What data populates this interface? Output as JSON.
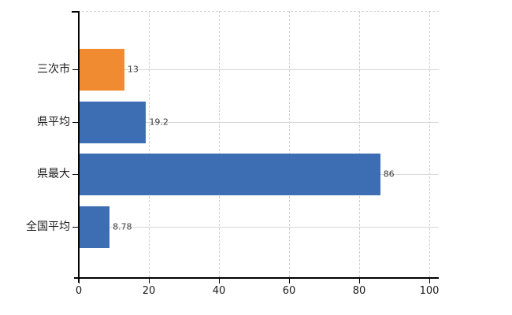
{
  "chart_data": {
    "type": "bar",
    "orientation": "horizontal",
    "categories": [
      "三次市",
      "県平均",
      "県最大",
      "全国平均"
    ],
    "values": [
      13,
      19.2,
      86,
      8.78
    ],
    "value_labels": [
      "13",
      "19.2",
      "86",
      "8.78"
    ],
    "x_ticks": [
      0,
      20,
      40,
      60,
      80,
      100
    ],
    "x_tick_labels": [
      "0",
      "20",
      "40",
      "60",
      "80",
      "100"
    ],
    "xlim": [
      0,
      100
    ],
    "bar_colors": [
      "#f08b31",
      "#3d6db3",
      "#3d6db3",
      "#3d6db3"
    ],
    "highlight_index": 0,
    "grid": true,
    "legend": false
  },
  "colors": {
    "bar_orange": "#f08b31",
    "bar_blue": "#3d6db3",
    "grid_vertical": "#cfcfcf",
    "grid_horizontal": "#d7d7d7",
    "axis": "#000000",
    "value_label": "#3c3c3c",
    "category_label": "#1a1a1a",
    "tick_label": "#1a1a1a",
    "background": "#ffffff"
  }
}
